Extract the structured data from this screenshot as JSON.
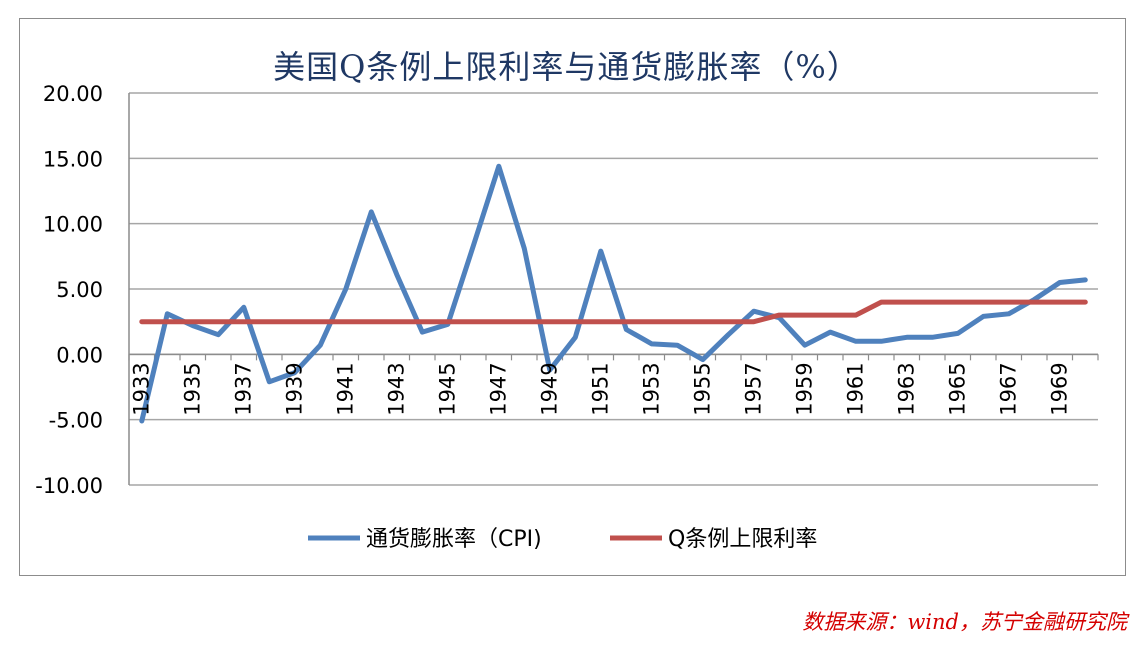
{
  "chart_data": {
    "type": "line",
    "title": "美国Q条例上限利率与通货膨胀率（%）",
    "source_note": "数据来源：wind，苏宁金融研究院",
    "x": [
      1933,
      1934,
      1935,
      1936,
      1937,
      1938,
      1939,
      1940,
      1941,
      1942,
      1943,
      1944,
      1945,
      1946,
      1947,
      1948,
      1949,
      1950,
      1951,
      1952,
      1953,
      1954,
      1955,
      1956,
      1957,
      1958,
      1959,
      1960,
      1961,
      1962,
      1963,
      1964,
      1965,
      1966,
      1967,
      1968,
      1969,
      1970
    ],
    "x_tick_labels": [
      "1933",
      "1935",
      "1937",
      "1939",
      "1941",
      "1943",
      "1945",
      "1947",
      "1949",
      "1951",
      "1953",
      "1955",
      "1957",
      "1959",
      "1961",
      "1963",
      "1965",
      "1967",
      "1969"
    ],
    "y_tick_labels": [
      "20.00",
      "15.00",
      "10.00",
      "5.00",
      "0.00",
      "-5.00",
      "-10.00"
    ],
    "ylim": [
      -10,
      20
    ],
    "y_step": 5,
    "grid": "horizontal",
    "legend_position": "bottom",
    "series": [
      {
        "name": "通货膨胀率（CPI)",
        "color": "#4f81bd",
        "values": [
          -5.1,
          3.1,
          2.2,
          1.5,
          3.6,
          -2.1,
          -1.4,
          0.7,
          5.0,
          10.9,
          6.1,
          1.7,
          2.3,
          8.3,
          14.4,
          8.1,
          -1.2,
          1.3,
          7.9,
          1.9,
          0.8,
          0.7,
          -0.4,
          1.5,
          3.3,
          2.8,
          0.7,
          1.7,
          1.0,
          1.0,
          1.3,
          1.3,
          1.6,
          2.9,
          3.1,
          4.2,
          5.5,
          5.7
        ]
      },
      {
        "name": "Q条例上限利率",
        "color": "#c0504d",
        "values": [
          2.5,
          2.5,
          2.5,
          2.5,
          2.5,
          2.5,
          2.5,
          2.5,
          2.5,
          2.5,
          2.5,
          2.5,
          2.5,
          2.5,
          2.5,
          2.5,
          2.5,
          2.5,
          2.5,
          2.5,
          2.5,
          2.5,
          2.5,
          2.5,
          2.5,
          3.0,
          3.0,
          3.0,
          3.0,
          4.0,
          4.0,
          4.0,
          4.0,
          4.0,
          4.0,
          4.0,
          4.0,
          4.0
        ]
      }
    ]
  }
}
